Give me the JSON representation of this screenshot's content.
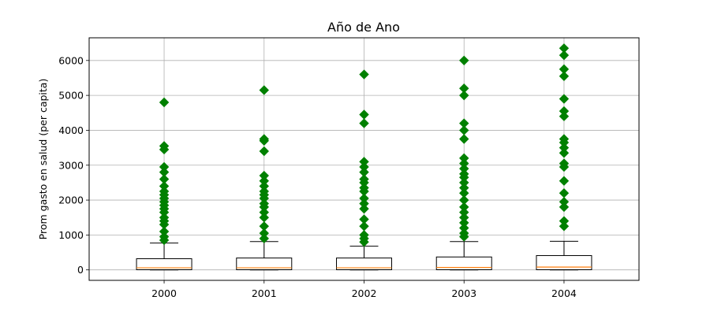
{
  "chart_data": {
    "type": "box",
    "title": "Año de Ano",
    "xlabel": "",
    "ylabel": "Prom gasto en salud (per capita)",
    "categories": [
      "2000",
      "2001",
      "2002",
      "2003",
      "2004"
    ],
    "ylim": [
      -300,
      6650
    ],
    "yticks": [
      0,
      1000,
      2000,
      3000,
      4000,
      5000,
      6000
    ],
    "grid": true,
    "colors": {
      "box": "#000000",
      "median": "#ff7f0e",
      "outlier": "#008000",
      "grid": "#b0b0b0"
    },
    "boxes": [
      {
        "label": "2000",
        "whisker_low": 0,
        "q1": 5,
        "median": 60,
        "q3": 320,
        "whisker_high": 770,
        "outliers": [
          850,
          950,
          1100,
          1300,
          1400,
          1500,
          1650,
          1750,
          1850,
          1950,
          2050,
          2150,
          2250,
          2400,
          2600,
          2800,
          2950,
          3450,
          3550,
          4800
        ]
      },
      {
        "label": "2001",
        "whisker_low": 0,
        "q1": 5,
        "median": 60,
        "q3": 340,
        "whisker_high": 810,
        "outliers": [
          900,
          1050,
          1250,
          1500,
          1650,
          1800,
          1900,
          2050,
          2150,
          2250,
          2400,
          2550,
          2700,
          3400,
          3700,
          3750,
          5150
        ]
      },
      {
        "label": "2002",
        "whisker_low": 0,
        "q1": 5,
        "median": 60,
        "q3": 340,
        "whisker_high": 680,
        "outliers": [
          800,
          900,
          1000,
          1250,
          1450,
          1750,
          1900,
          2050,
          2250,
          2350,
          2500,
          2600,
          2800,
          2950,
          3100,
          4200,
          4450,
          5600
        ]
      },
      {
        "label": "2003",
        "whisker_low": 0,
        "q1": 5,
        "median": 70,
        "q3": 370,
        "whisker_high": 810,
        "outliers": [
          950,
          1050,
          1200,
          1350,
          1500,
          1650,
          1800,
          2000,
          2200,
          2350,
          2500,
          2650,
          2750,
          2900,
          3050,
          3200,
          3750,
          4000,
          4200,
          5000,
          5200,
          6000
        ]
      },
      {
        "label": "2004",
        "whisker_low": 0,
        "q1": 5,
        "median": 80,
        "q3": 410,
        "whisker_high": 820,
        "outliers": [
          1250,
          1400,
          1800,
          1950,
          2200,
          2550,
          2950,
          3050,
          3350,
          3500,
          3650,
          3750,
          4400,
          4550,
          4900,
          5550,
          5750,
          6150,
          6350
        ]
      }
    ]
  }
}
